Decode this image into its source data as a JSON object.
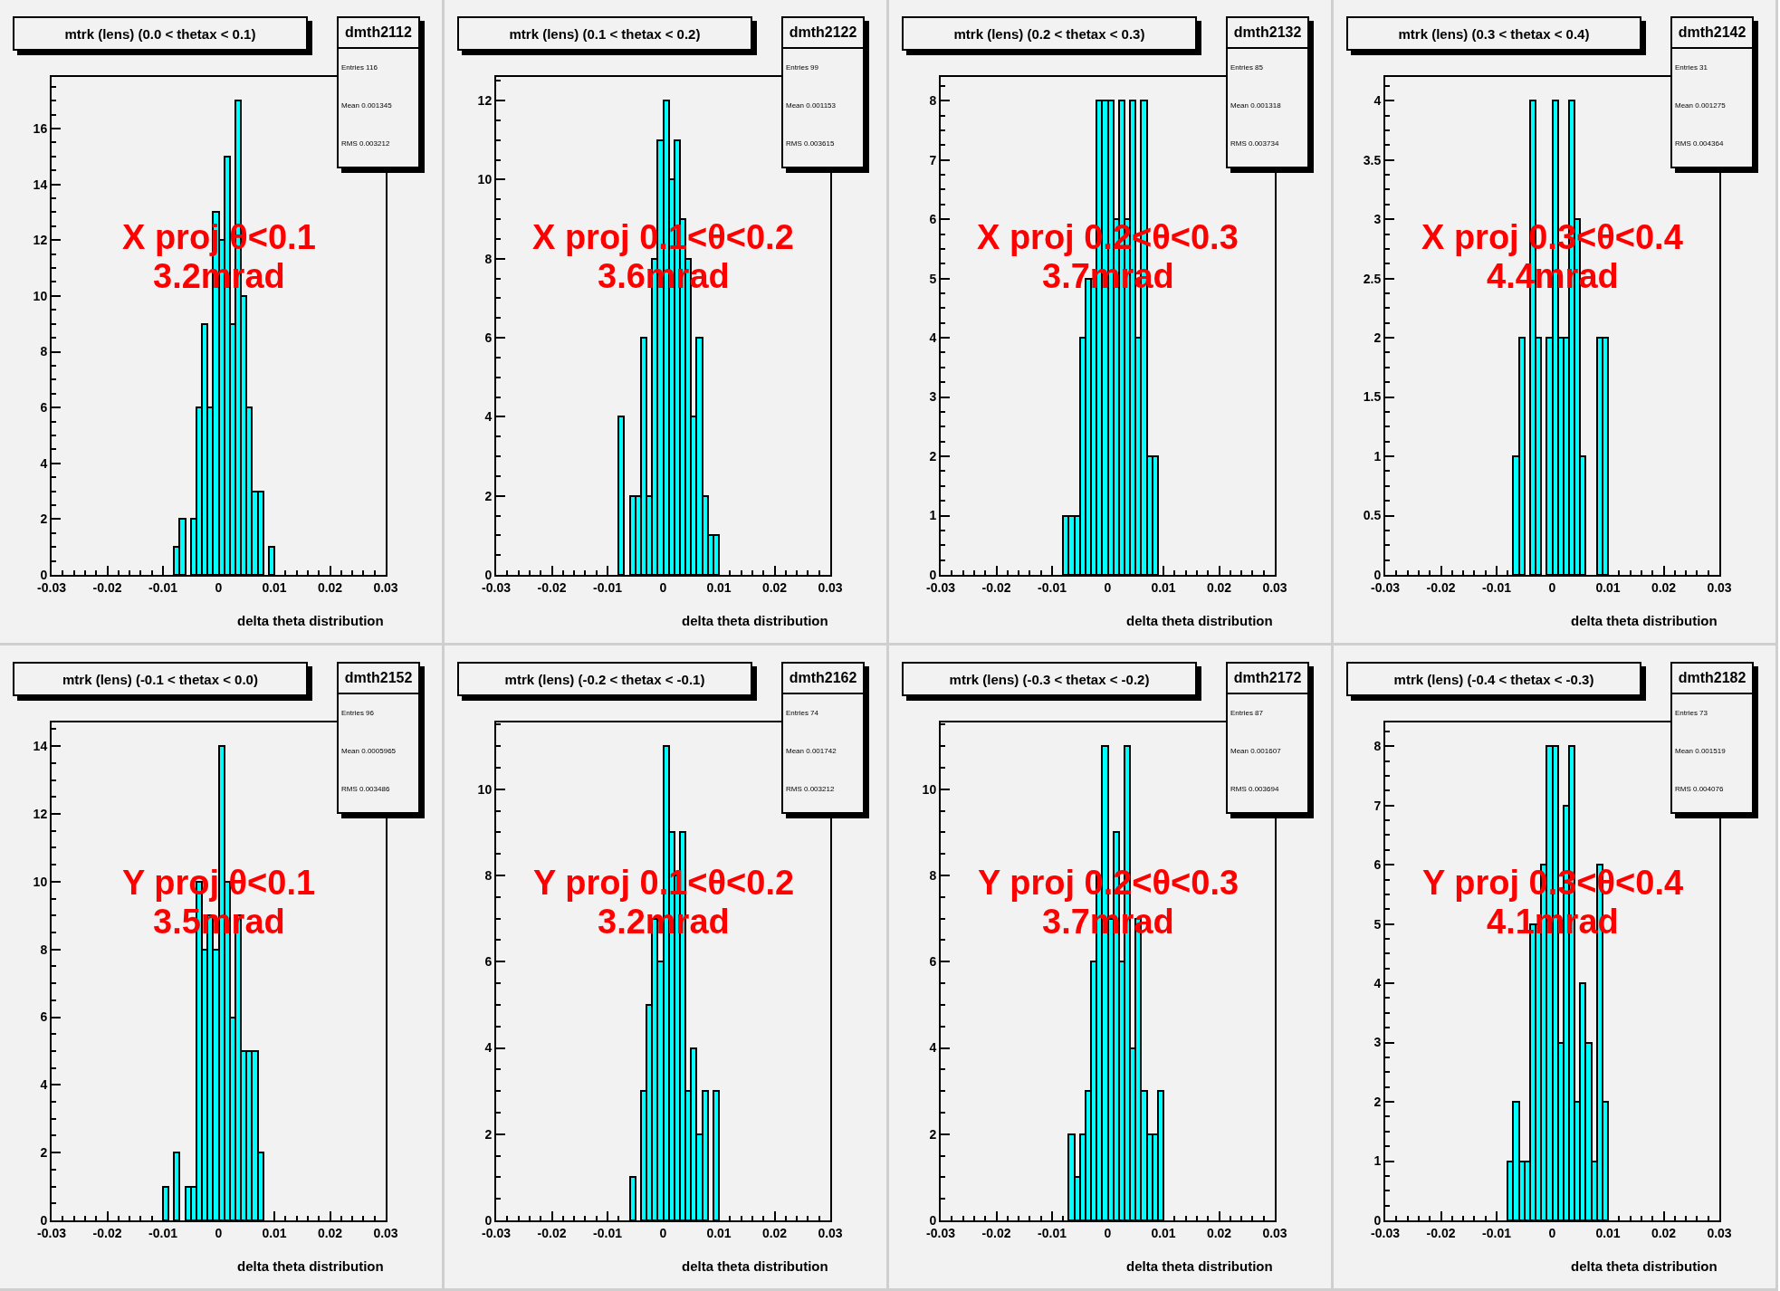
{
  "chart_data": [
    {
      "type": "histogram",
      "title": "mtrk (lens) (0.0 < thetax < 0.1)",
      "xlabel": "delta theta distribution",
      "color": "#00ffff",
      "annotations": [
        "X proj θ<0.1",
        "3.2mrad",
        "dmth2112",
        "Entries 116",
        "Mean 0.001345",
        "RMS 0.003212"
      ],
      "bins": [
        -0.008,
        -0.007,
        -0.006,
        -0.005,
        -0.004,
        -0.003,
        -0.002,
        -0.001,
        0,
        0.001,
        0.002,
        0.003,
        0.004,
        0.005,
        0.006,
        0.007,
        0.008,
        0.009,
        0.01
      ],
      "values": [
        1,
        2,
        0,
        2,
        6,
        9,
        6,
        13,
        12,
        15,
        9,
        17,
        10,
        6,
        3,
        3,
        0,
        1
      ],
      "xlim": [
        -0.03,
        0.03
      ],
      "xticks": [
        -0.03,
        -0.02,
        -0.01,
        0,
        0.01,
        0.02,
        0.03
      ],
      "ylim": [
        0,
        17.85
      ],
      "yticks": [
        0,
        2,
        4,
        6,
        8,
        10,
        12,
        14,
        16
      ]
    },
    {
      "type": "histogram",
      "title": "mtrk (lens) (0.1 < thetax < 0.2)",
      "xlabel": "delta theta distribution",
      "color": "#00ffff",
      "annotations": [
        "X proj 0.1<θ<0.2",
        "3.6mrad",
        "dmth2122",
        "Entries 99",
        "Mean 0.001153",
        "RMS 0.003615"
      ],
      "bins": [
        -0.008,
        -0.007,
        -0.006,
        -0.005,
        -0.004,
        -0.003,
        -0.002,
        -0.001,
        0,
        0.001,
        0.002,
        0.003,
        0.004,
        0.005,
        0.006,
        0.007,
        0.008,
        0.009,
        0.01
      ],
      "values": [
        4,
        0,
        2,
        2,
        6,
        2,
        8,
        11,
        12,
        10,
        11,
        9,
        8,
        4,
        6,
        2,
        1,
        1
      ],
      "xlim": [
        -0.03,
        0.03
      ],
      "xticks": [
        -0.03,
        -0.02,
        -0.01,
        0,
        0.01,
        0.02,
        0.03
      ],
      "ylim": [
        0,
        12.6
      ],
      "yticks": [
        0,
        2,
        4,
        6,
        8,
        10,
        12
      ]
    },
    {
      "type": "histogram",
      "title": "mtrk (lens) (0.2 < thetax < 0.3)",
      "xlabel": "delta theta distribution",
      "color": "#00ffff",
      "annotations": [
        "X proj 0.2<θ<0.3",
        "3.7mrad",
        "dmth2132",
        "Entries 85",
        "Mean 0.001318",
        "RMS 0.003734"
      ],
      "bins": [
        -0.008,
        -0.007,
        -0.006,
        -0.005,
        -0.004,
        -0.003,
        -0.002,
        -0.001,
        0,
        0.001,
        0.002,
        0.003,
        0.004,
        0.005,
        0.006,
        0.007,
        0.008,
        0.009
      ],
      "values": [
        1,
        1,
        1,
        4,
        5,
        5,
        8,
        8,
        8,
        6,
        8,
        6,
        8,
        4,
        8,
        2,
        2
      ],
      "xlim": [
        -0.03,
        0.03
      ],
      "xticks": [
        -0.03,
        -0.02,
        -0.01,
        0,
        0.01,
        0.02,
        0.03
      ],
      "ylim": [
        0,
        8.4
      ],
      "yticks": [
        0,
        1,
        2,
        3,
        4,
        5,
        6,
        7,
        8
      ]
    },
    {
      "type": "histogram",
      "title": "mtrk (lens) (0.3 < thetax < 0.4)",
      "xlabel": "delta theta distribution",
      "color": "#00ffff",
      "annotations": [
        "X proj 0.3<θ<0.4",
        "4.4mrad",
        "dmth2142",
        "Entries 31",
        "Mean 0.001275",
        "RMS 0.004364"
      ],
      "bins": [
        -0.007,
        -0.006,
        -0.005,
        -0.004,
        -0.003,
        -0.002,
        -0.001,
        0,
        0.001,
        0.002,
        0.003,
        0.004,
        0.005,
        0.006,
        0.007,
        0.008,
        0.009,
        0.01
      ],
      "values": [
        1,
        2,
        0,
        4,
        2,
        0,
        2,
        4,
        2,
        2,
        4,
        3,
        1,
        0,
        0,
        2,
        2
      ],
      "xlim": [
        -0.03,
        0.03
      ],
      "xticks": [
        -0.03,
        -0.02,
        -0.01,
        0,
        0.01,
        0.02,
        0.03
      ],
      "ylim": [
        0,
        4.2
      ],
      "yticks": [
        0,
        0.5,
        1,
        1.5,
        2,
        2.5,
        3,
        3.5,
        4
      ]
    },
    {
      "type": "histogram",
      "title": "mtrk (lens) (-0.1 < thetax < 0.0)",
      "xlabel": "delta theta distribution",
      "color": "#00ffff",
      "annotations": [
        "Y proj θ<0.1",
        "3.5mrad",
        "dmth2152",
        "Entries 96",
        "Mean 0.0005965",
        "RMS 0.003486"
      ],
      "bins": [
        -0.01,
        -0.009,
        -0.008,
        -0.007,
        -0.006,
        -0.005,
        -0.004,
        -0.003,
        -0.002,
        -0.001,
        0,
        0.001,
        0.002,
        0.003,
        0.004,
        0.005,
        0.006,
        0.007,
        0.008
      ],
      "values": [
        1,
        0,
        2,
        0,
        1,
        1,
        10,
        8,
        9,
        8,
        14,
        10,
        6,
        9,
        5,
        5,
        5,
        2
      ],
      "xlim": [
        -0.03,
        0.03
      ],
      "xticks": [
        -0.03,
        -0.02,
        -0.01,
        0,
        0.01,
        0.02,
        0.03
      ],
      "ylim": [
        0,
        14.7
      ],
      "yticks": [
        0,
        2,
        4,
        6,
        8,
        10,
        12,
        14
      ]
    },
    {
      "type": "histogram",
      "title": "mtrk (lens) (-0.2 < thetax < -0.1)",
      "xlabel": "delta theta distribution",
      "color": "#00ffff",
      "annotations": [
        "Y proj 0.1<θ<0.2",
        "3.2mrad",
        "dmth2162",
        "Entries 74",
        "Mean 0.001742",
        "RMS 0.003212"
      ],
      "bins": [
        -0.006,
        -0.005,
        -0.004,
        -0.003,
        -0.002,
        -0.001,
        0,
        0.001,
        0.002,
        0.003,
        0.004,
        0.005,
        0.006,
        0.007,
        0.008,
        0.009,
        0.01
      ],
      "values": [
        1,
        0,
        3,
        5,
        7,
        6,
        11,
        9,
        8,
        9,
        3,
        4,
        2,
        3,
        0,
        3
      ],
      "xlim": [
        -0.03,
        0.03
      ],
      "xticks": [
        -0.03,
        -0.02,
        -0.01,
        0,
        0.01,
        0.02,
        0.03
      ],
      "ylim": [
        0,
        11.55
      ],
      "yticks": [
        0,
        2,
        4,
        6,
        8,
        10
      ]
    },
    {
      "type": "histogram",
      "title": "mtrk (lens) (-0.3 < thetax < -0.2)",
      "xlabel": "delta theta distribution",
      "color": "#00ffff",
      "annotations": [
        "Y proj 0.2<θ<0.3",
        "3.7mrad",
        "dmth2172",
        "Entries 87",
        "Mean 0.001607",
        "RMS 0.003694"
      ],
      "bins": [
        -0.007,
        -0.006,
        -0.005,
        -0.004,
        -0.003,
        -0.002,
        -0.001,
        0,
        0.001,
        0.002,
        0.003,
        0.004,
        0.005,
        0.006,
        0.007,
        0.008,
        0.009,
        0.01
      ],
      "values": [
        2,
        1,
        2,
        3,
        6,
        8,
        11,
        7,
        9,
        6,
        11,
        4,
        7,
        3,
        2,
        2,
        3
      ],
      "xlim": [
        -0.03,
        0.03
      ],
      "xticks": [
        -0.03,
        -0.02,
        -0.01,
        0,
        0.01,
        0.02,
        0.03
      ],
      "ylim": [
        0,
        11.55
      ],
      "yticks": [
        0,
        2,
        4,
        6,
        8,
        10
      ]
    },
    {
      "type": "histogram",
      "title": "mtrk (lens) (-0.4 < thetax < -0.3)",
      "xlabel": "delta theta distribution",
      "color": "#00ffff",
      "annotations": [
        "Y proj 0.3<θ<0.4",
        "4.1mrad",
        "dmth2182",
        "Entries 73",
        "Mean 0.001519",
        "RMS 0.004076"
      ],
      "bins": [
        -0.008,
        -0.007,
        -0.006,
        -0.005,
        -0.004,
        -0.003,
        -0.002,
        -0.001,
        0,
        0.001,
        0.002,
        0.003,
        0.004,
        0.005,
        0.006,
        0.007,
        0.008,
        0.009,
        0.01
      ],
      "values": [
        1,
        2,
        1,
        1,
        5,
        5,
        6,
        8,
        8,
        3,
        7,
        8,
        2,
        4,
        3,
        1,
        6,
        2
      ],
      "xlim": [
        -0.03,
        0.03
      ],
      "xticks": [
        -0.03,
        -0.02,
        -0.01,
        0,
        0.01,
        0.02,
        0.03
      ],
      "ylim": [
        0,
        8.4
      ],
      "yticks": [
        0,
        1,
        2,
        3,
        4,
        5,
        6,
        7,
        8
      ]
    }
  ]
}
